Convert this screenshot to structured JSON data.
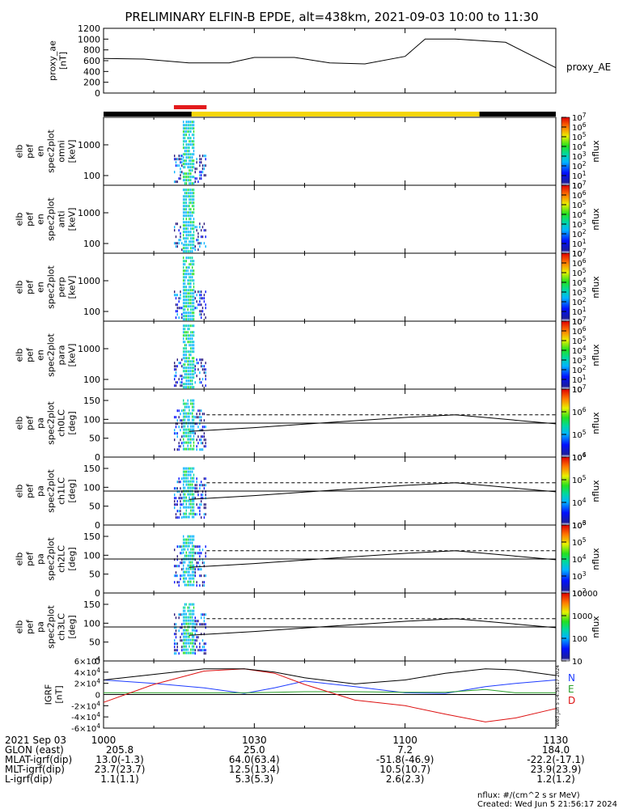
{
  "title": "PRELIMINARY ELFIN-B EPDE, alt=438km, 2021-09-03 10:00 to 11:30",
  "colors": {
    "sci_bar_red": "#e31a1c",
    "sci_bar_yellow": "#f5d60a",
    "geo_N": "#1e3cff",
    "geo_E": "#2aa02a",
    "geo_D": "#dd1111"
  },
  "time_axis": {
    "ticks": [
      "1000",
      "1030",
      "1100",
      "1130"
    ],
    "row_labels": [
      "2021 Sep 03",
      "GLON (east)",
      "MLAT-igrf(dip)",
      "MLT-igrf(dip)",
      "L-igrf(dip)"
    ],
    "columns": [
      [
        "205.8",
        "13.0(-1.3)",
        "23.7(23.7)",
        "1.1(1.1)"
      ],
      [
        "25.0",
        "64.0(63.4)",
        "12.5(13.4)",
        "5.3(5.3)"
      ],
      [
        "7.2",
        "-51.8(-46.9)",
        "10.5(10.7)",
        "2.6(2.3)"
      ],
      [
        "184.0",
        "-22.2(-17.1)",
        "23.9(23.9)",
        "1.2(1.2)"
      ]
    ]
  },
  "footer": {
    "units": "nflux: #/(cm^2 s sr MeV)",
    "created": "Created: Wed Jun  5 21:56:17 2024"
  },
  "vertical_stamp": "Wed Jun  5 14:56:17 2024",
  "chart_data": [
    {
      "type": "line",
      "name": "proxy_ae",
      "ylabel": [
        "proxy_ae",
        "[nT]"
      ],
      "ylim": [
        0,
        1200
      ],
      "yticks": [
        "0",
        "200",
        "400",
        "600",
        "800",
        "1000",
        "1200"
      ],
      "legend": "proxy_AE",
      "x_minutes": [
        0,
        8,
        17,
        25,
        30,
        38,
        45,
        52,
        60,
        64,
        70,
        80,
        90
      ],
      "values": [
        640,
        630,
        560,
        560,
        660,
        660,
        560,
        540,
        680,
        1000,
        1000,
        940,
        470
      ]
    },
    {
      "type": "heatmap",
      "name": "spectrogram",
      "panels": [
        {
          "ylabel": [
            "elb",
            "pef",
            "en",
            "spec2plot",
            "omni",
            "[keV]"
          ],
          "yticks": [
            "100",
            "1000"
          ]
        },
        {
          "ylabel": [
            "elb",
            "pef",
            "en",
            "spec2plot",
            "anti",
            "[keV]"
          ],
          "yticks": [
            "100",
            "1000"
          ]
        },
        {
          "ylabel": [
            "elb",
            "pef",
            "en",
            "spec2plot",
            "perp",
            "[keV]"
          ],
          "yticks": [
            "100",
            "1000"
          ]
        },
        {
          "ylabel": [
            "elb",
            "pef",
            "en",
            "spec2plot",
            "para",
            "[keV]"
          ],
          "yticks": [
            "100",
            "1000"
          ]
        }
      ],
      "colorbar": {
        "label": "nflux",
        "ticks": [
          "10",
          "10^1",
          "10^2",
          "10^3",
          "10^4",
          "10^5",
          "10^6",
          "10^7"
        ]
      }
    },
    {
      "type": "heatmap",
      "name": "pitch_angle",
      "panels": [
        {
          "ylabel": [
            "elb",
            "pef",
            "pa",
            "spec2plot",
            "ch0LC",
            "[deg]"
          ],
          "yticks": [
            "0",
            "50",
            "100",
            "150"
          ],
          "colorbar_ticks": [
            "10^4",
            "10^5",
            "10^6",
            "10^7"
          ]
        },
        {
          "ylabel": [
            "elb",
            "pef",
            "pa",
            "spec2plot",
            "ch1LC",
            "[deg]"
          ],
          "yticks": [
            "0",
            "50",
            "100",
            "150"
          ],
          "colorbar_ticks": [
            "10^3",
            "10^4",
            "10^5",
            "10^6"
          ]
        },
        {
          "ylabel": [
            "elb",
            "pef",
            "pa",
            "spec2plot",
            "ch2LC",
            "[deg]"
          ],
          "yticks": [
            "0",
            "50",
            "100",
            "150"
          ],
          "colorbar_ticks": [
            "10^2",
            "10^3",
            "10^4",
            "10^5",
            "10^6"
          ]
        },
        {
          "ylabel": [
            "elb",
            "pef",
            "pa",
            "spec2plot",
            "ch3LC",
            "[deg]"
          ],
          "yticks": [
            "0",
            "50",
            "100",
            "150"
          ],
          "colorbar_ticks": [
            "10",
            "100",
            "1000",
            "10000"
          ]
        }
      ],
      "colorbar_label": "nflux",
      "x_minutes": [
        17,
        30,
        45,
        60,
        70,
        80,
        90
      ],
      "losscone": [
        68,
        78,
        92,
        105,
        112,
        100,
        88
      ],
      "anti_losscone": 112
    },
    {
      "type": "line",
      "name": "IGRF",
      "ylabel": [
        "IGRF",
        "[nT]"
      ],
      "ylim": [
        -60000,
        60000
      ],
      "yticks": [
        "6×10^4",
        "4×10^4",
        "2×10^4",
        "0",
        "-2×10^4",
        "-4×10^4",
        "-6×10^4"
      ],
      "x_minutes": [
        0,
        10,
        20,
        28,
        34,
        40,
        50,
        60,
        68,
        76,
        82,
        90
      ],
      "series": [
        {
          "name": "N",
          "values": [
            26000,
            20000,
            12000,
            2000,
            12000,
            24000,
            14000,
            3000,
            2000,
            14000,
            20000,
            26000
          ]
        },
        {
          "name": "E",
          "values": [
            3000,
            3000,
            3000,
            3000,
            4000,
            5000,
            5000,
            4000,
            4000,
            9000,
            3000,
            3000
          ]
        },
        {
          "name": "D",
          "values": [
            -14000,
            18000,
            42000,
            46000,
            38000,
            18000,
            -10000,
            -20000,
            -35000,
            -49000,
            -42000,
            -25000
          ]
        },
        {
          "name": "total",
          "values": [
            26000,
            36000,
            46000,
            46000,
            40000,
            30000,
            19000,
            26000,
            38000,
            46000,
            44000,
            34000
          ]
        }
      ]
    }
  ]
}
